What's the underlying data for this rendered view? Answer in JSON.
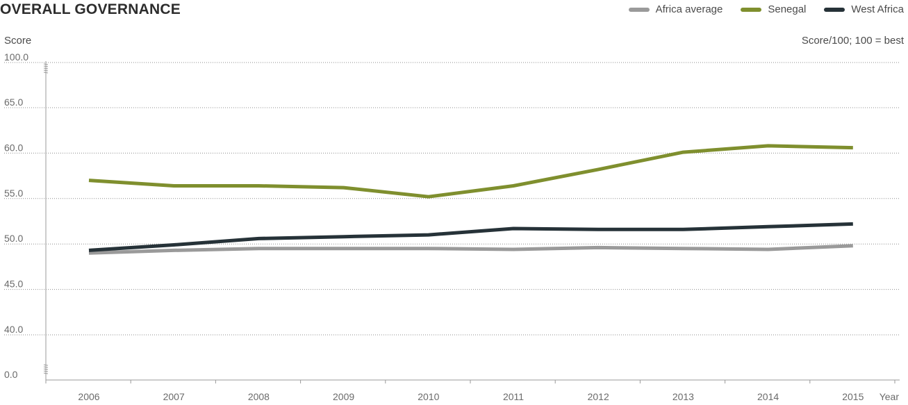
{
  "title": "OVERALL GOVERNANCE",
  "ylabel": "Score",
  "note": "Score/100; 100 = best",
  "xlabel": "Year",
  "legend": [
    {
      "label": "Africa average",
      "color": "#9a9a9a"
    },
    {
      "label": "Senegal",
      "color": "#7f8f2e"
    },
    {
      "label": "West Africa",
      "color": "#263238"
    }
  ],
  "chart_data": {
    "type": "line",
    "title": "OVERALL GOVERNANCE",
    "xlabel": "Year",
    "ylabel": "Score",
    "note": "Score/100; 100 = best",
    "x": [
      2006,
      2007,
      2008,
      2009,
      2010,
      2011,
      2012,
      2013,
      2014,
      2015
    ],
    "y_ticks": [
      "0.0",
      "40.0",
      "45.0",
      "50.0",
      "55.0",
      "60.0",
      "65.0",
      "100.0"
    ],
    "y_axis_break": true,
    "grid": true,
    "legend_position": "top-right",
    "series": [
      {
        "name": "Africa average",
        "color": "#9a9a9a",
        "values": [
          49.0,
          49.3,
          49.5,
          49.5,
          49.5,
          49.4,
          49.6,
          49.5,
          49.4,
          49.8
        ]
      },
      {
        "name": "Senegal",
        "color": "#7f8f2e",
        "values": [
          57.0,
          56.4,
          56.4,
          56.2,
          55.2,
          56.4,
          58.2,
          60.1,
          60.8,
          60.6
        ]
      },
      {
        "name": "West Africa",
        "color": "#263238",
        "values": [
          49.3,
          49.9,
          50.6,
          50.8,
          51.0,
          51.7,
          51.6,
          51.6,
          51.9,
          52.2
        ]
      }
    ]
  }
}
